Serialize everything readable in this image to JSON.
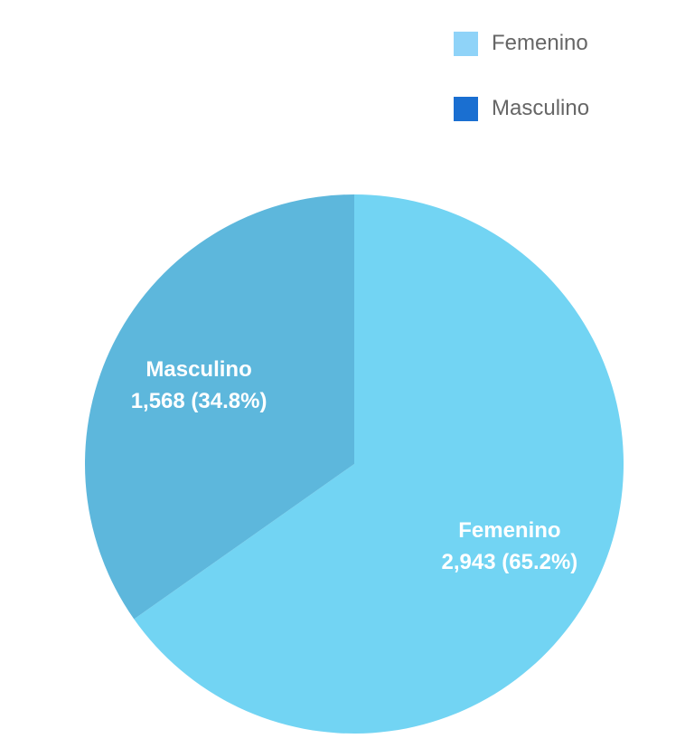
{
  "chart_data": {
    "type": "pie",
    "categories": [
      "Femenino",
      "Masculino"
    ],
    "values": [
      2943,
      1568
    ],
    "value_labels": [
      "2,943 (65.2%)",
      "1,568 (34.8%)"
    ],
    "slice_colors": [
      "#72d4f3",
      "#5db7dc"
    ],
    "legend": {
      "placement": "top-right",
      "entries": [
        {
          "label": "Femenino",
          "color": "#8fd3f8"
        },
        {
          "label": "Masculino",
          "color": "#1a6fd1"
        }
      ]
    },
    "title": ""
  }
}
